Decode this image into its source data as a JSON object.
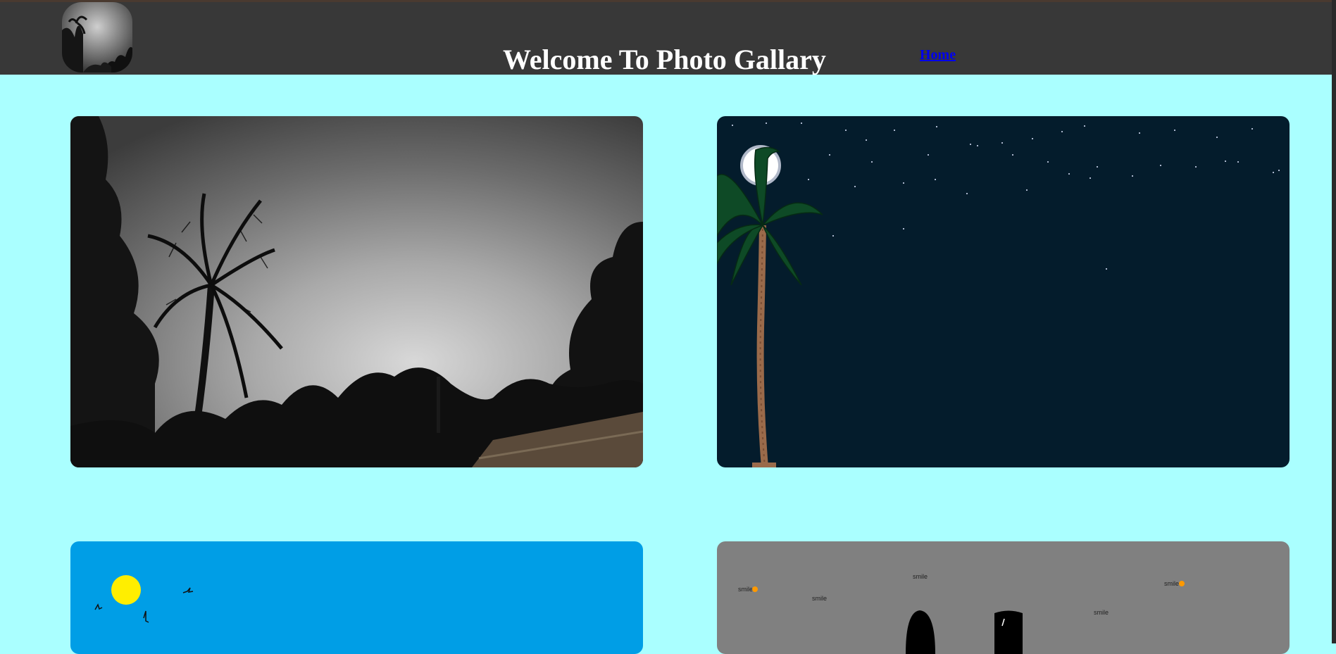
{
  "header": {
    "title": "Welcome To Photo Gallary",
    "nav": {
      "home_label": "Home"
    },
    "logo_icon": "gallery-logo-icon"
  },
  "gallery": {
    "photos": [
      {
        "name": "stormy-sky-palm-photo"
      },
      {
        "name": "night-palm-moon-photo"
      },
      {
        "name": "sunny-sky-birds-photo"
      },
      {
        "name": "smile-drawing-photo",
        "labels": [
          "smile",
          "smile",
          "smile",
          "smile",
          "smile"
        ]
      }
    ]
  },
  "colors": {
    "page_bg": "#aaffff",
    "header_bg": "#383838",
    "link": "#0000ee",
    "title": "#ffffff"
  }
}
